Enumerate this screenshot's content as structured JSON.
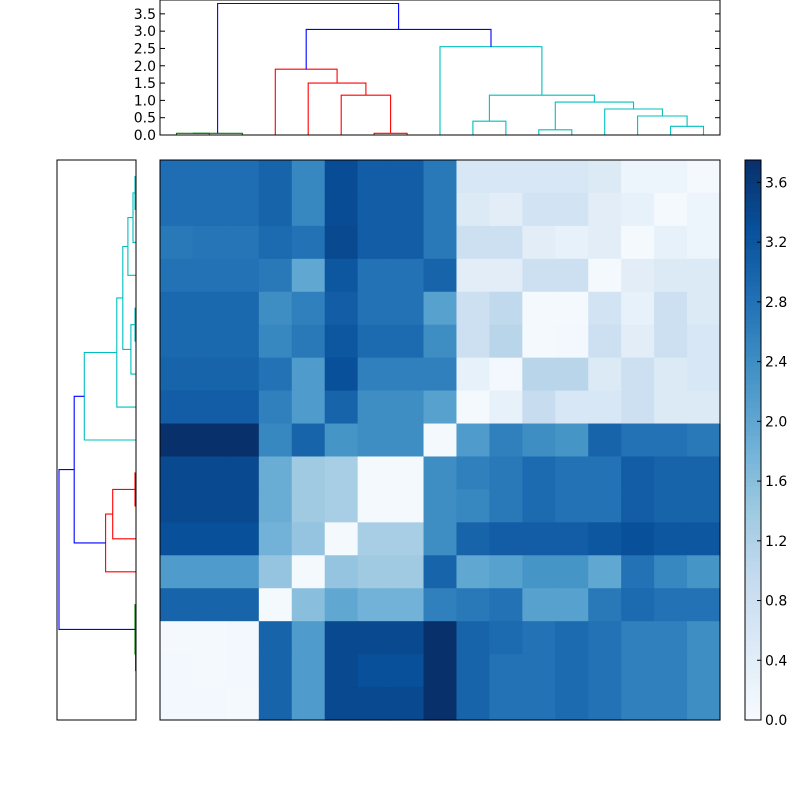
{
  "chart_data": [
    {
      "type": "dendrogram",
      "orientation": "top",
      "ylim": [
        0,
        3.9
      ],
      "yticks": [
        0.0,
        0.5,
        1.0,
        1.5,
        2.0,
        2.5,
        3.0,
        3.5
      ],
      "ytick_labels": [
        "0.0",
        "0.5",
        "1.0",
        "1.5",
        "2.0",
        "2.5",
        "3.0",
        "3.5"
      ],
      "leaves": 17,
      "links": [
        {
          "a": 0,
          "b": 1,
          "h": 0.05,
          "color": "#008000"
        },
        {
          "a": 2,
          "b": 10001,
          "h": 0.05,
          "color": "#008000"
        },
        {
          "a": 6,
          "b": 7,
          "h": 0.05,
          "color": "#ff0000"
        },
        {
          "a": 5,
          "b": 10003,
          "h": 1.15,
          "color": "#ff0000"
        },
        {
          "a": 4,
          "b": 10004,
          "h": 1.5,
          "color": "#ff0000"
        },
        {
          "a": 3,
          "b": 10005,
          "h": 1.9,
          "color": "#ff0000"
        },
        {
          "a": 9,
          "b": 10,
          "h": 0.4,
          "color": "#00bfbf"
        },
        {
          "a": 11,
          "b": 12,
          "h": 0.15,
          "color": "#00bfbf"
        },
        {
          "a": 15,
          "b": 16,
          "h": 0.25,
          "color": "#00bfbf"
        },
        {
          "a": 14,
          "b": 10009,
          "h": 0.55,
          "color": "#00bfbf"
        },
        {
          "a": 13,
          "b": 10010,
          "h": 0.75,
          "color": "#00bfbf"
        },
        {
          "a": 10008,
          "b": 10011,
          "h": 0.95,
          "color": "#00bfbf"
        },
        {
          "a": 10007,
          "b": 10012,
          "h": 1.15,
          "color": "#00bfbf"
        },
        {
          "a": 8,
          "b": 10013,
          "h": 2.55,
          "color": "#00bfbf"
        },
        {
          "a": 10006,
          "b": 10014,
          "h": 3.05,
          "color": "#0000ff"
        },
        {
          "a": 10002,
          "b": 10015,
          "h": 3.8,
          "color": "#0000ff"
        }
      ]
    },
    {
      "type": "dendrogram",
      "orientation": "left",
      "leaves": 17,
      "leaf_order": "top-to-bottom",
      "links": [
        {
          "a": 0,
          "b": 1,
          "h": 0.05,
          "color": "#00bfbf"
        },
        {
          "a": 2,
          "b": 10001,
          "h": 0.15,
          "color": "#00bfbf"
        },
        {
          "a": 3,
          "b": 10002,
          "h": 0.4,
          "color": "#00bfbf"
        },
        {
          "a": 4,
          "b": 5,
          "h": 0.05,
          "color": "#00bfbf"
        },
        {
          "a": 10004,
          "b": 6,
          "h": 0.25,
          "color": "#00bfbf"
        },
        {
          "a": 10003,
          "b": 10005,
          "h": 0.65,
          "color": "#00bfbf"
        },
        {
          "a": 7,
          "b": 10006,
          "h": 0.95,
          "color": "#00bfbf"
        },
        {
          "a": 10007,
          "b": 8,
          "h": 2.55,
          "color": "#00bfbf"
        },
        {
          "a": 9,
          "b": 10,
          "h": 0.05,
          "color": "#ff0000"
        },
        {
          "a": 11,
          "b": 10009,
          "h": 1.15,
          "color": "#ff0000"
        },
        {
          "a": 10010,
          "b": 12,
          "h": 1.5,
          "color": "#ff0000"
        },
        {
          "a": 10008,
          "b": 10011,
          "h": 3.05,
          "color": "#0000ff"
        },
        {
          "a": 14,
          "b": 15,
          "h": 0.02,
          "color": "#008000"
        },
        {
          "a": 13,
          "b": 10013,
          "h": 0.05,
          "color": "#008000"
        },
        {
          "a": 10012,
          "b": 10014,
          "h": 3.8,
          "color": "#0000ff"
        }
      ]
    },
    {
      "type": "heatmap",
      "rows": 17,
      "cols": 17,
      "colormap": "Blues",
      "vmin": 0.0,
      "vmax": 3.75,
      "values": [
        [
          2.85,
          2.85,
          2.85,
          3.0,
          2.5,
          3.35,
          3.1,
          3.1,
          2.7,
          0.6,
          0.6,
          0.6,
          0.6,
          0.5,
          0.2,
          0.2,
          0.05
        ],
        [
          2.85,
          2.85,
          2.85,
          3.0,
          2.5,
          3.35,
          3.1,
          3.1,
          2.7,
          0.5,
          0.4,
          0.7,
          0.7,
          0.4,
          0.3,
          0.05,
          0.2
        ],
        [
          2.7,
          2.75,
          2.75,
          2.9,
          2.8,
          3.4,
          3.1,
          3.1,
          2.7,
          0.8,
          0.8,
          0.4,
          0.3,
          0.4,
          0.05,
          0.3,
          0.2
        ],
        [
          2.8,
          2.8,
          2.8,
          2.7,
          2.0,
          3.2,
          2.8,
          2.8,
          3.0,
          0.4,
          0.4,
          0.8,
          0.8,
          0.05,
          0.4,
          0.5,
          0.5
        ],
        [
          2.95,
          2.95,
          2.95,
          2.4,
          2.6,
          3.1,
          2.8,
          2.8,
          2.1,
          0.8,
          1.0,
          0.05,
          0.05,
          0.7,
          0.3,
          0.8,
          0.5
        ],
        [
          2.95,
          2.95,
          2.95,
          2.5,
          2.7,
          3.2,
          2.9,
          2.9,
          2.4,
          0.8,
          1.1,
          0.05,
          0.1,
          0.8,
          0.4,
          0.8,
          0.6
        ],
        [
          3.0,
          3.0,
          3.0,
          2.8,
          2.2,
          3.3,
          2.6,
          2.6,
          2.6,
          0.3,
          0.1,
          1.1,
          1.1,
          0.5,
          0.8,
          0.5,
          0.6
        ],
        [
          3.1,
          3.1,
          3.1,
          2.6,
          2.2,
          3.0,
          2.4,
          2.4,
          2.1,
          0.05,
          0.3,
          0.9,
          0.6,
          0.6,
          0.8,
          0.5,
          0.5
        ],
        [
          3.75,
          3.75,
          3.75,
          2.5,
          3.0,
          2.3,
          2.4,
          2.4,
          0.05,
          2.2,
          2.6,
          2.4,
          2.3,
          3.0,
          2.8,
          2.8,
          2.7
        ],
        [
          3.4,
          3.4,
          3.4,
          1.9,
          1.4,
          1.3,
          0.05,
          0.05,
          2.4,
          2.6,
          2.7,
          2.9,
          2.8,
          2.8,
          3.1,
          3.0,
          3.0
        ],
        [
          3.4,
          3.4,
          3.4,
          1.9,
          1.4,
          1.3,
          0.05,
          0.05,
          2.4,
          2.5,
          2.7,
          2.9,
          2.8,
          2.8,
          3.1,
          3.0,
          3.0
        ],
        [
          3.3,
          3.3,
          3.3,
          1.8,
          1.5,
          0.05,
          1.3,
          1.3,
          2.4,
          3.0,
          3.1,
          3.1,
          3.1,
          3.2,
          3.3,
          3.2,
          3.2
        ],
        [
          2.2,
          2.2,
          2.2,
          1.5,
          0.05,
          1.5,
          1.4,
          1.4,
          3.0,
          2.0,
          2.1,
          2.3,
          2.3,
          2.0,
          2.8,
          2.5,
          2.3
        ],
        [
          3.0,
          3.0,
          3.0,
          0.05,
          1.6,
          2.0,
          1.8,
          1.8,
          2.6,
          2.7,
          2.8,
          2.1,
          2.1,
          2.7,
          2.9,
          2.8,
          2.8
        ],
        [
          0.05,
          0.05,
          0.1,
          3.0,
          2.2,
          3.4,
          3.4,
          3.4,
          3.75,
          3.0,
          2.9,
          2.8,
          2.9,
          2.8,
          2.6,
          2.6,
          2.4
        ],
        [
          0.1,
          0.05,
          0.1,
          3.0,
          2.2,
          3.4,
          3.3,
          3.3,
          3.75,
          3.0,
          2.8,
          2.8,
          2.9,
          2.8,
          2.6,
          2.6,
          2.4
        ],
        [
          0.1,
          0.1,
          0.05,
          3.0,
          2.2,
          3.4,
          3.4,
          3.4,
          3.75,
          3.0,
          2.8,
          2.8,
          2.9,
          2.8,
          2.6,
          2.6,
          2.4
        ]
      ]
    },
    {
      "type": "colorbar",
      "vmin": 0.0,
      "vmax": 3.75,
      "ticks": [
        0.0,
        0.4,
        0.8,
        1.2,
        1.6,
        2.0,
        2.4,
        2.8,
        3.2,
        3.6
      ],
      "tick_labels": [
        "0.0",
        "0.4",
        "0.8",
        "1.2",
        "1.6",
        "2.0",
        "2.4",
        "2.8",
        "3.2",
        "3.6"
      ]
    }
  ]
}
